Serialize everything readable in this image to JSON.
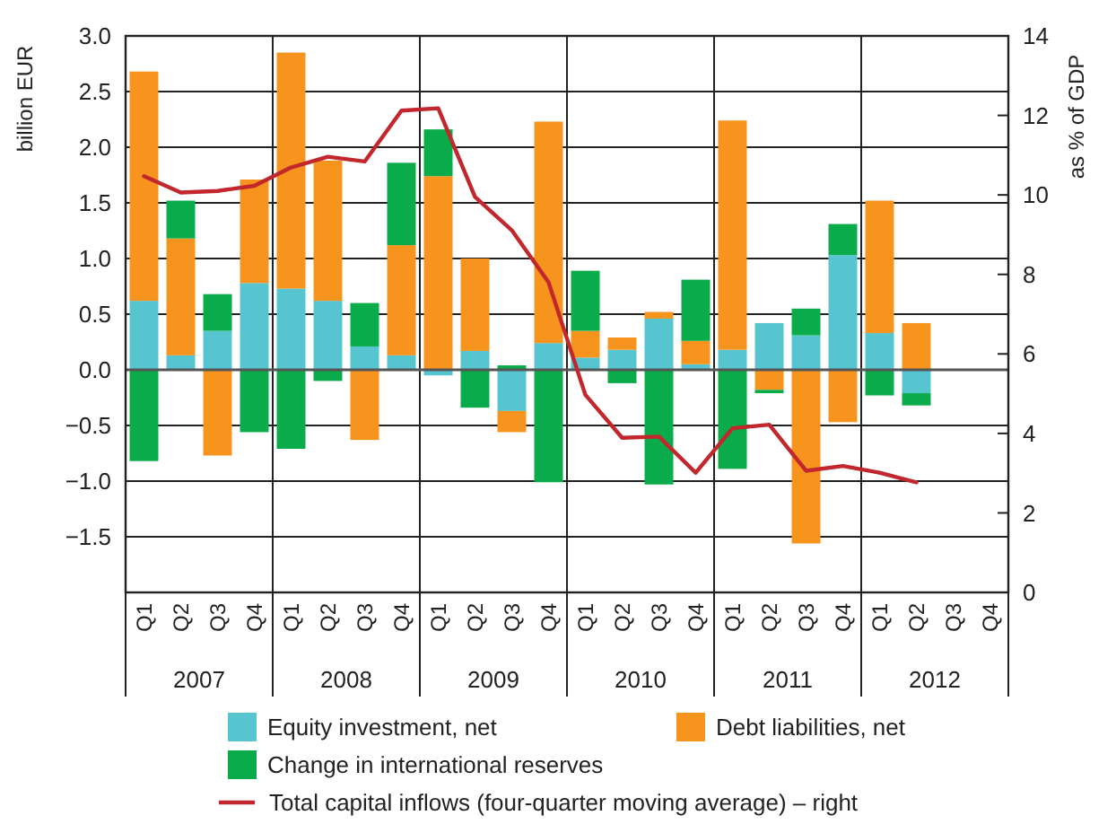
{
  "chart_data": {
    "type": "bar",
    "stacked": true,
    "ylabel": "billion EUR",
    "y2label": "as % of GDP",
    "categories": [
      "Q1",
      "Q2",
      "Q3",
      "Q4",
      "Q1",
      "Q2",
      "Q3",
      "Q4",
      "Q1",
      "Q2",
      "Q3",
      "Q4",
      "Q1",
      "Q2",
      "Q3",
      "Q4",
      "Q1",
      "Q2",
      "Q3",
      "Q4",
      "Q1",
      "Q2",
      "Q3",
      "Q4"
    ],
    "annotations": [
      "2007",
      "2008",
      "2009",
      "2010",
      "2011",
      "2012"
    ],
    "series": [
      {
        "name": "Equity investment, net",
        "color": "#56c5d0",
        "values": [
          0.62,
          0.13,
          0.35,
          0.78,
          0.73,
          0.62,
          0.21,
          0.13,
          -0.05,
          0.17,
          -0.37,
          0.24,
          0.11,
          0.18,
          0.46,
          0.05,
          0.18,
          0.42,
          0.31,
          1.03,
          0.33,
          -0.21,
          null,
          null
        ]
      },
      {
        "name": "Debt liabilities, net",
        "color": "#f7941d",
        "values": [
          2.06,
          1.05,
          -0.77,
          0.93,
          2.12,
          1.26,
          -0.63,
          0.99,
          1.74,
          0.83,
          -0.19,
          1.99,
          0.24,
          0.11,
          0.06,
          0.21,
          2.06,
          -0.18,
          -1.56,
          -0.47,
          1.19,
          0.42,
          null,
          null
        ]
      },
      {
        "name": "Change in international reserves",
        "color": "#0aab4b",
        "values": [
          -0.82,
          0.34,
          0.33,
          -0.56,
          -0.71,
          -0.1,
          0.39,
          0.74,
          0.42,
          -0.34,
          0.04,
          -1.01,
          0.54,
          -0.12,
          -1.03,
          0.55,
          -0.89,
          -0.03,
          0.24,
          0.28,
          -0.23,
          -0.11,
          null,
          null
        ]
      },
      {
        "name": "Total capital inflows (four-quarter moving average) – right",
        "type": "line",
        "axis": "y2",
        "color": "#c1272d",
        "values": [
          10.47,
          10.06,
          10.1,
          10.23,
          10.69,
          10.96,
          10.84,
          12.12,
          12.18,
          9.95,
          9.11,
          7.8,
          4.97,
          3.89,
          3.92,
          3.01,
          4.13,
          4.22,
          3.06,
          3.18,
          3.01,
          2.77,
          null,
          null
        ]
      }
    ],
    "ylim": [
      -2,
      3
    ],
    "yticks": [
      {
        "value": 3,
        "label": "3.0"
      },
      {
        "value": 2.5,
        "label": "2.5"
      },
      {
        "value": 2,
        "label": "2.0"
      },
      {
        "value": 1.5,
        "label": "1.5"
      },
      {
        "value": 1,
        "label": "1.0"
      },
      {
        "value": 0.5,
        "label": "0.5"
      },
      {
        "value": 0,
        "label": "0.0"
      },
      {
        "value": -0.5,
        "label": "−0.5"
      },
      {
        "value": -1,
        "label": "−1.0"
      },
      {
        "value": -1.5,
        "label": "−1.5"
      },
      {
        "value": -2,
        "label": null
      }
    ],
    "y2lim": [
      0,
      14
    ],
    "y2ticks": [
      0,
      2,
      4,
      6,
      8,
      10,
      12,
      14
    ],
    "grid": true,
    "legend": "bottom"
  }
}
